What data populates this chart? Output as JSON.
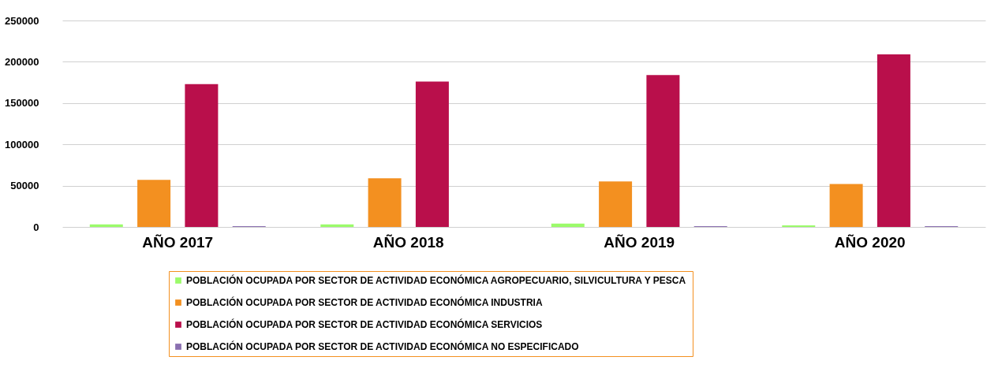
{
  "chart_data": {
    "type": "bar",
    "categories": [
      "AÑO 2017",
      "AÑO 2018",
      "AÑO 2019",
      "AÑO 2020"
    ],
    "series": [
      {
        "name": "POBLACIÓN OCUPADA POR SECTOR DE ACTIVIDAD ECONÓMICA AGROPECUARIO, SILVICULTURA Y PESCA",
        "color": "#9bfb6a",
        "values": [
          3000,
          3000,
          4000,
          2000
        ]
      },
      {
        "name": "POBLACIÓN OCUPADA POR SECTOR DE ACTIVIDAD ECONÓMICA INDUSTRIA",
        "color": "#f39020",
        "values": [
          57000,
          59000,
          55000,
          52000
        ]
      },
      {
        "name": "POBLACIÓN OCUPADA POR SECTOR DE ACTIVIDAD ECONÓMICA SERVICIOS",
        "color": "#b90f4b",
        "values": [
          173000,
          176000,
          184000,
          209000
        ]
      },
      {
        "name": "POBLACIÓN OCUPADA POR SECTOR DE ACTIVIDAD ECONÓMICA NO ESPECIFICADO",
        "color": "#8a6fb0",
        "values": [
          1000,
          0,
          1000,
          1000
        ]
      }
    ],
    "ylim": [
      0,
      250000
    ],
    "yticks": [
      0,
      50000,
      100000,
      150000,
      200000,
      250000
    ],
    "grid": "y",
    "legend": "bottom"
  }
}
